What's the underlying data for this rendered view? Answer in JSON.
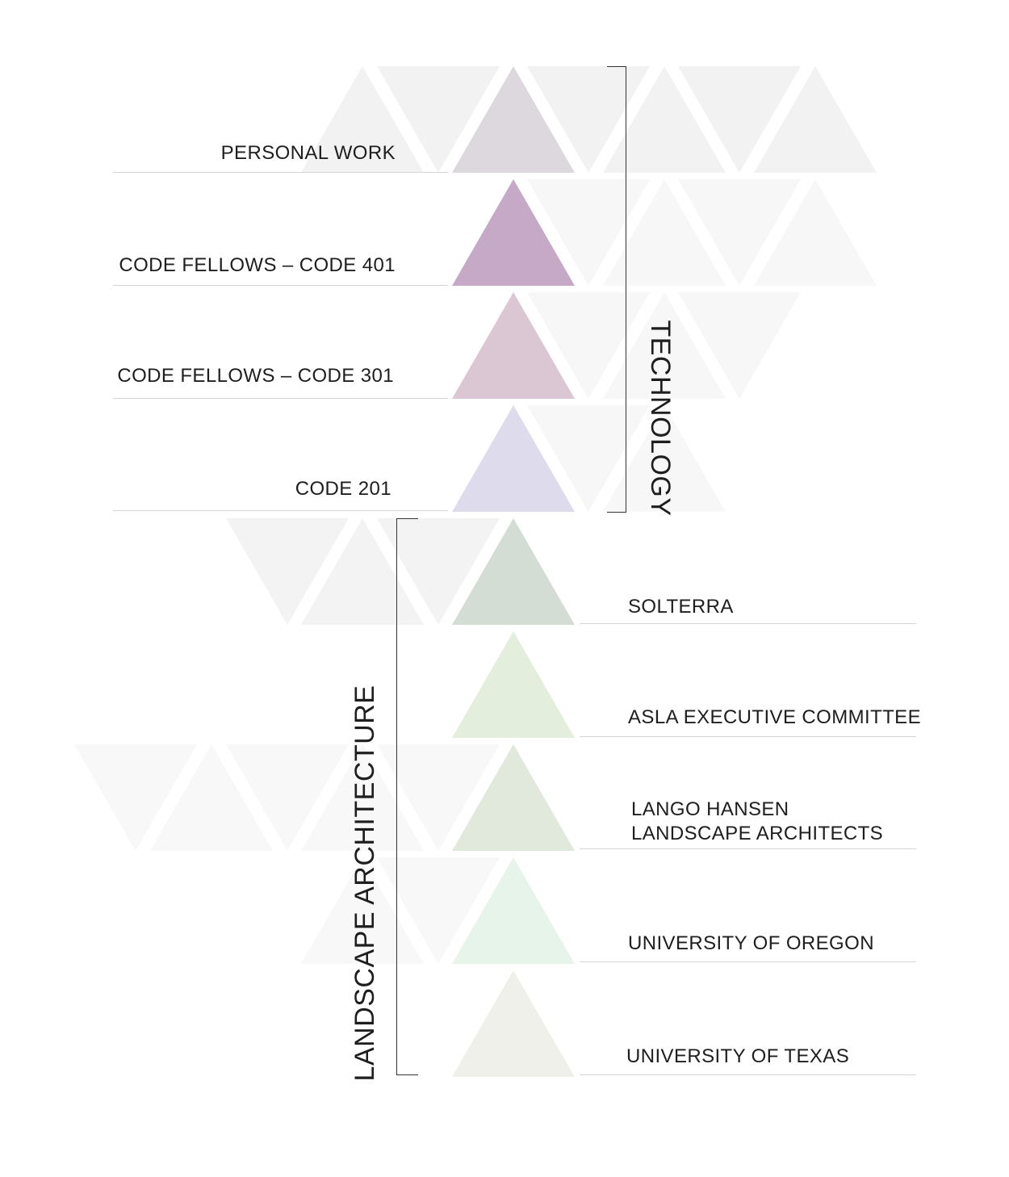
{
  "categories": {
    "technology": "TECHNOLOGY",
    "landscape": "LANDSCAPE ARCHITECTURE"
  },
  "technology_rows": [
    {
      "lines": [
        "PERSONAL WORK"
      ],
      "color": "#ddd8de"
    },
    {
      "lines": [
        "CODE FELLOWS – CODE 401"
      ],
      "color": "#c5a9c7"
    },
    {
      "lines": [
        "CODE FELLOWS – CODE 301"
      ],
      "color": "#dbc6d3"
    },
    {
      "lines": [
        "CODE 201"
      ],
      "color": "#dedbec"
    }
  ],
  "landscape_rows": [
    {
      "lines": [
        "SOLTERRA"
      ],
      "color": "#d3ddd4"
    },
    {
      "lines": [
        "ASLA EXECUTIVE COMMITTEE"
      ],
      "color": "#e3efdc"
    },
    {
      "lines": [
        "LANGO HANSEN",
        "LANDSCAPE ARCHITECTS"
      ],
      "color": "#e0e9dc"
    },
    {
      "lines": [
        "UNIVERSITY OF OREGON"
      ],
      "color": "#e7f4ea"
    },
    {
      "lines": [
        "UNIVERSITY OF TEXAS"
      ],
      "color": "#eff0ea"
    }
  ]
}
